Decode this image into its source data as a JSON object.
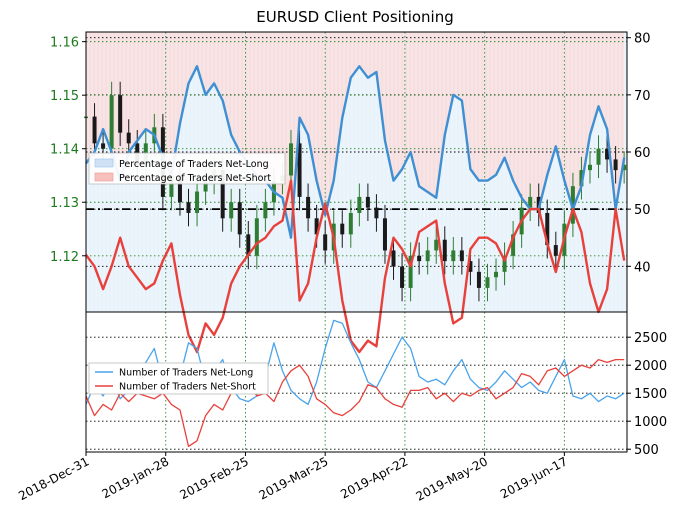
{
  "chart_data": [
    {
      "type": "line",
      "title": "EURUSD Client Positioning",
      "price_axis": {
        "ticks": [
          1.12,
          1.13,
          1.14,
          1.15,
          1.16
        ],
        "tick_labels": [
          "1.12",
          "1.13",
          "1.14",
          "1.15",
          "1.16"
        ],
        "range": [
          1.1095,
          1.1618
        ],
        "color": "#1e7a1e"
      },
      "percent_axis": {
        "ticks": [
          40,
          50,
          60,
          70,
          80
        ],
        "tick_labels": [
          "40",
          "50",
          "60",
          "70",
          "80"
        ],
        "range": [
          32,
          81
        ]
      },
      "x_ticks": [
        "2018-Dec-31",
        "2019-Jan-28",
        "2019-Feb-25",
        "2019-Mar-25",
        "2019-Apr-22",
        "2019-May-20",
        "2019-Jun-17"
      ],
      "x_tick_positions": [
        0,
        28,
        56,
        84,
        112,
        140,
        168
      ],
      "x_range": [
        0,
        190
      ],
      "reference_line": 50,
      "legend": {
        "placement": "upper-left",
        "entries": [
          "Percentage of Traders Net-Long",
          "Percentage of Traders Net-Short"
        ]
      },
      "grid": true,
      "colors": {
        "net_long": "#3f8fd2",
        "net_short": "#e8413c",
        "candle": "#1a1a1a",
        "candle_up": "#2e7d32",
        "fill_long": "#d6e7f7",
        "fill_short": "#fbd8d7"
      },
      "series": [
        {
          "name": "Percentage of Traders Net-Long",
          "x": [
            0,
            3,
            6,
            9,
            12,
            15,
            18,
            21,
            24,
            27,
            30,
            33,
            36,
            39,
            42,
            45,
            48,
            51,
            54,
            57,
            60,
            63,
            66,
            69,
            72,
            75,
            78,
            81,
            84,
            87,
            90,
            93,
            96,
            99,
            102,
            105,
            108,
            111,
            114,
            117,
            120,
            123,
            126,
            129,
            132,
            135,
            138,
            141,
            144,
            147,
            150,
            153,
            156,
            159,
            162,
            165,
            168,
            171,
            174,
            177,
            180,
            183,
            186,
            189
          ],
          "values": [
            58,
            60,
            64,
            60,
            55,
            60,
            62,
            64,
            63,
            59,
            56,
            65,
            72,
            75,
            70,
            72,
            69,
            63,
            60,
            58,
            56,
            55,
            53,
            52,
            45,
            66,
            63,
            55,
            49,
            55,
            66,
            73,
            75,
            73,
            74,
            62,
            55,
            57,
            60,
            54,
            53,
            52,
            63,
            70,
            69,
            57,
            55,
            55,
            56,
            59,
            55,
            52,
            50,
            50,
            56,
            61,
            55,
            50,
            54,
            63,
            68,
            64,
            50,
            59
          ]
        },
        {
          "name": "Percentage of Traders Net-Short",
          "x": [
            0,
            3,
            6,
            9,
            12,
            15,
            18,
            21,
            24,
            27,
            30,
            33,
            36,
            39,
            42,
            45,
            48,
            51,
            54,
            57,
            60,
            63,
            66,
            69,
            72,
            75,
            78,
            81,
            84,
            87,
            90,
            93,
            96,
            99,
            102,
            105,
            108,
            111,
            114,
            117,
            120,
            123,
            126,
            129,
            132,
            135,
            138,
            141,
            144,
            147,
            150,
            153,
            156,
            159,
            162,
            165,
            168,
            171,
            174,
            177,
            180,
            183,
            186,
            189
          ],
          "values": [
            42,
            40,
            36,
            40,
            45,
            40,
            38,
            36,
            37,
            41,
            44,
            35,
            28,
            25,
            30,
            28,
            31,
            37,
            40,
            42,
            44,
            45,
            47,
            48,
            55,
            34,
            37,
            45,
            51,
            45,
            34,
            27,
            25,
            27,
            26,
            38,
            45,
            43,
            40,
            46,
            47,
            48,
            37,
            30,
            31,
            43,
            45,
            45,
            44,
            41,
            45,
            48,
            50,
            50,
            44,
            39,
            45,
            50,
            46,
            37,
            32,
            36,
            50,
            41
          ]
        }
      ],
      "price_candles": {
        "x": [
          0,
          3,
          6,
          9,
          12,
          15,
          18,
          21,
          24,
          27,
          30,
          33,
          36,
          39,
          42,
          45,
          48,
          51,
          54,
          57,
          60,
          63,
          66,
          69,
          72,
          75,
          78,
          81,
          84,
          87,
          90,
          93,
          96,
          99,
          102,
          105,
          108,
          111,
          114,
          117,
          120,
          123,
          126,
          129,
          132,
          135,
          138,
          141,
          144,
          147,
          150,
          153,
          156,
          159,
          162,
          165,
          168,
          171,
          174,
          177,
          180,
          183,
          186,
          189
        ],
        "close": [
          1.146,
          1.141,
          1.14,
          1.15,
          1.143,
          1.141,
          1.137,
          1.141,
          1.144,
          1.131,
          1.135,
          1.13,
          1.128,
          1.132,
          1.134,
          1.136,
          1.127,
          1.13,
          1.124,
          1.12,
          1.127,
          1.13,
          1.134,
          1.135,
          1.141,
          1.131,
          1.127,
          1.124,
          1.121,
          1.126,
          1.124,
          1.128,
          1.131,
          1.129,
          1.127,
          1.121,
          1.118,
          1.114,
          1.12,
          1.119,
          1.121,
          1.123,
          1.119,
          1.121,
          1.119,
          1.117,
          1.114,
          1.116,
          1.117,
          1.12,
          1.124,
          1.129,
          1.131,
          1.128,
          1.122,
          1.12,
          1.126,
          1.133,
          1.136,
          1.137,
          1.14,
          1.138,
          1.136,
          1.137
        ]
      }
    },
    {
      "type": "line",
      "y_axis": {
        "ticks": [
          500,
          1000,
          1500,
          2000,
          2500
        ],
        "tick_labels": [
          "500",
          "1000",
          "1500",
          "2000",
          "2500"
        ],
        "range": [
          450,
          2950
        ]
      },
      "x_range": [
        0,
        190
      ],
      "legend": {
        "placement": "center-left",
        "entries": [
          "Number of Traders Net-Long",
          "Number of Traders Net-Short"
        ]
      },
      "grid": true,
      "series": [
        {
          "name": "Number of Traders Net-Long",
          "x": [
            0,
            3,
            6,
            9,
            12,
            15,
            18,
            21,
            24,
            27,
            30,
            33,
            36,
            39,
            42,
            45,
            48,
            51,
            54,
            57,
            60,
            63,
            66,
            69,
            72,
            75,
            78,
            81,
            84,
            87,
            90,
            93,
            96,
            99,
            102,
            105,
            108,
            111,
            114,
            117,
            120,
            123,
            126,
            129,
            132,
            135,
            138,
            141,
            144,
            147,
            150,
            153,
            156,
            159,
            162,
            165,
            168,
            171,
            174,
            177,
            180,
            183,
            186,
            189
          ],
          "values": [
            1300,
            1650,
            1450,
            1750,
            1400,
            1550,
            1900,
            2050,
            2300,
            1700,
            1500,
            1800,
            2400,
            2300,
            1700,
            1900,
            2100,
            1600,
            1400,
            1350,
            1450,
            1800,
            2400,
            1900,
            1550,
            1400,
            1300,
            1700,
            2300,
            2800,
            2750,
            2400,
            2100,
            1700,
            1600,
            1900,
            2200,
            2500,
            2300,
            1800,
            1700,
            1750,
            1650,
            1900,
            2100,
            1750,
            1600,
            1550,
            1700,
            1900,
            1750,
            1600,
            1700,
            1550,
            1500,
            1800,
            2100,
            1450,
            1400,
            1500,
            1350,
            1450,
            1400,
            1500
          ]
        },
        {
          "name": "Number of Traders Net-Short",
          "x": [
            0,
            3,
            6,
            9,
            12,
            15,
            18,
            21,
            24,
            27,
            30,
            33,
            36,
            39,
            42,
            45,
            48,
            51,
            54,
            57,
            60,
            63,
            66,
            69,
            72,
            75,
            78,
            81,
            84,
            87,
            90,
            93,
            96,
            99,
            102,
            105,
            108,
            111,
            114,
            117,
            120,
            123,
            126,
            129,
            132,
            135,
            138,
            141,
            144,
            147,
            150,
            153,
            156,
            159,
            162,
            165,
            168,
            171,
            174,
            177,
            180,
            183,
            186,
            189
          ],
          "values": [
            1450,
            1100,
            1300,
            1200,
            1500,
            1350,
            1500,
            1450,
            1400,
            1500,
            1300,
            1200,
            550,
            650,
            1100,
            1300,
            1200,
            1500,
            1600,
            1700,
            1450,
            1500,
            1350,
            1700,
            1900,
            2000,
            1800,
            1400,
            1300,
            1150,
            1100,
            1200,
            1350,
            1650,
            1600,
            1400,
            1300,
            1250,
            1550,
            1550,
            1600,
            1400,
            1500,
            1350,
            1500,
            1450,
            1550,
            1600,
            1400,
            1500,
            1600,
            1850,
            1800,
            1650,
            1900,
            1950,
            1800,
            1900,
            2000,
            1950,
            2100,
            2050,
            2100,
            2100
          ]
        }
      ]
    }
  ]
}
